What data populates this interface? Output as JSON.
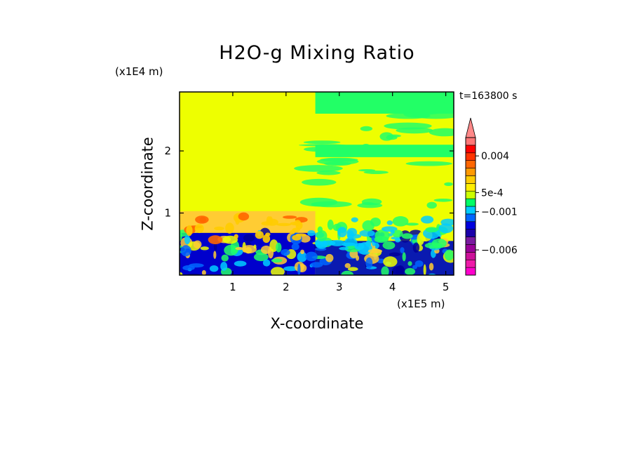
{
  "chart_data": {
    "type": "heatmap",
    "title": "H2O-g Mixing Ratio",
    "xlabel": "X-coordinate",
    "ylabel": "Z-coordinate",
    "x_unit": "(x1E5 m)",
    "y_unit": "(x1E4 m)",
    "time_label": "t=163800 s",
    "xlim": [
      0,
      5.15
    ],
    "ylim": [
      0,
      2.95
    ],
    "x_ticks": [
      1,
      2,
      3,
      4,
      5
    ],
    "x_tick_labels": [
      "1",
      "2",
      "3",
      "4",
      "5"
    ],
    "y_ticks": [
      1,
      2
    ],
    "y_tick_labels": [
      "1",
      "2"
    ],
    "colorbar": {
      "colors": [
        "#ff00cc",
        "#ee1aa8",
        "#cc1199",
        "#990099",
        "#7a1aa0",
        "#1a00aa",
        "#0000dd",
        "#0066ff",
        "#00ccff",
        "#00ff66",
        "#ccff00",
        "#ffee00",
        "#ffcc00",
        "#ff9900",
        "#ff6600",
        "#ff3300",
        "#ff0000",
        "#ff7777"
      ],
      "labeled_values": [
        0.004,
        0.0005,
        -0.001,
        -0.006
      ],
      "labels": [
        "0.004",
        "5e-4",
        "−0.001",
        "−0.006"
      ]
    },
    "regions": [
      {
        "name": "background",
        "x": [
          0,
          5.15
        ],
        "z": [
          0,
          2.95
        ],
        "color": "#eeff00"
      },
      {
        "name": "upper-moist-band-left",
        "x": [
          0,
          2.55
        ],
        "z": [
          0.68,
          1.03
        ],
        "color": "#ffcc33"
      },
      {
        "name": "lower-boundary-layer-left",
        "x": [
          0,
          2.55
        ],
        "z": [
          0,
          0.68
        ],
        "color": "#0000cc"
      },
      {
        "name": "lower-boundary-layer-right",
        "x": [
          2.55,
          5.15
        ],
        "z": [
          0,
          0.55
        ],
        "color": "#0a1ab0"
      },
      {
        "name": "upper-green-right",
        "x": [
          2.55,
          5.15
        ],
        "z": [
          2.6,
          2.95
        ],
        "color": "#22ff66"
      },
      {
        "name": "mid-green-band-right",
        "x": [
          2.55,
          5.15
        ],
        "z": [
          1.9,
          2.1
        ],
        "color": "#22ff66"
      }
    ]
  }
}
